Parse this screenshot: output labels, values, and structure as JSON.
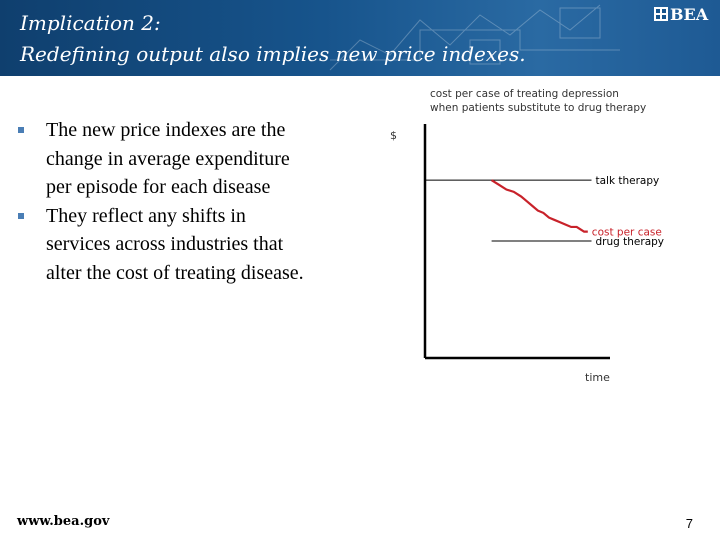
{
  "slide": {
    "title_line1": "Implication 2:",
    "title_line2": "Redefining output also implies new price indexes.",
    "logo_text": "BEA",
    "bullets": [
      "The new price indexes are the change in average expenditure per episode for each disease",
      "They reflect any shifts in services across industries that alter the cost of treating disease."
    ],
    "footer_url": "www.bea.gov",
    "page_number": "7"
  },
  "chart_data": {
    "type": "line",
    "title": [
      "cost per case of treating depression",
      "when patients substitute to drug therapy"
    ],
    "ylabel": "$",
    "xlabel": "time",
    "ylim": [
      0,
      100
    ],
    "xlim": [
      0,
      100
    ],
    "grid": false,
    "legend": "inline-right",
    "colors": {
      "axis": "#000000",
      "reference": "#000000",
      "cost": "#c8222a",
      "title": "#333333"
    },
    "series": [
      {
        "name": "talk therapy",
        "x": [
          0,
          90
        ],
        "y": [
          76,
          76
        ]
      },
      {
        "name": "cost per case",
        "x": [
          36,
          40,
          44,
          48,
          52,
          55,
          58,
          61,
          64,
          67,
          70,
          73,
          76,
          79,
          82,
          84,
          86,
          88
        ],
        "y": [
          76,
          74,
          72,
          71,
          69,
          67,
          65,
          63,
          62,
          60,
          59,
          58,
          57,
          56,
          56,
          55,
          54,
          54
        ]
      },
      {
        "name": "drug therapy",
        "x": [
          36,
          90
        ],
        "y": [
          50,
          50
        ]
      }
    ]
  }
}
